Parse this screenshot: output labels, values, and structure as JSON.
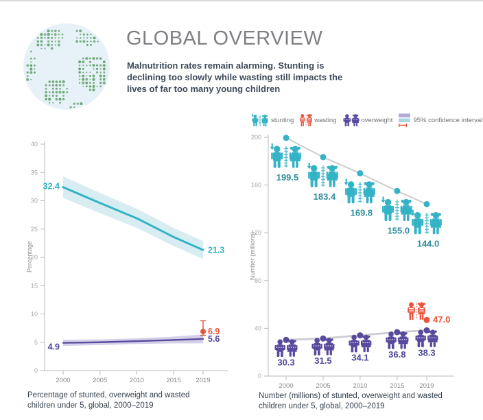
{
  "header": {
    "title": "GLOBAL OVERVIEW",
    "subtitle": "Malnutrition rates remain alarming. Stunting is\ndeclining too slowly while wasting still impacts the\nlives of far too many young children"
  },
  "legend": {
    "items": [
      {
        "label": "stunting",
        "color": "#35b3c6"
      },
      {
        "label": "wasting",
        "color": "#e8543d"
      },
      {
        "label": "overweight",
        "color": "#5a4a9e"
      },
      {
        "label": "95% confidence interval",
        "colors": [
          "#b3a8d6",
          "#a8d8e4",
          "#e8543d"
        ]
      }
    ]
  },
  "colors": {
    "teal": "#35b3c6",
    "teal_dark": "#2f8d9e",
    "red": "#e8543d",
    "purple": "#5a4a9e",
    "purple_dark": "#4d4699",
    "band_teal": "#d8edf2",
    "band_purple": "#d5d0ea",
    "trend": "#cbccce",
    "axis": "#b7b9bb",
    "globe_green": "#67a571",
    "globe_blue": "#e7f2f8"
  },
  "chart_data": [
    {
      "type": "line",
      "caption": "Percentage of stunted, overweight and wasted\nchildren under 5, global, 2000–2019",
      "ylabel": "Percentage",
      "xlabel": "",
      "ylim": [
        0,
        40
      ],
      "ytick_step": 5,
      "x": [
        2000,
        2005,
        2010,
        2015,
        2019
      ],
      "series": [
        {
          "name": "stunting",
          "color": "#35b3c6",
          "label_color": "#2eb2c5",
          "band_color": "#d8edf2",
          "values": [
            32.4,
            29.6,
            26.9,
            23.6,
            21.3
          ],
          "ci_half_width": [
            1.9,
            1.8,
            1.7,
            1.6,
            1.6
          ],
          "first_label": "32.4",
          "last_label": "21.3"
        },
        {
          "name": "overweight",
          "color": "#5a4a9e",
          "label_color": "#4d4699",
          "band_color": "#d5d0ea",
          "values": [
            4.9,
            5.0,
            5.2,
            5.4,
            5.6
          ],
          "ci_half_width": [
            0.55,
            0.5,
            0.5,
            0.6,
            0.8
          ],
          "first_label": "4.9",
          "last_label": "5.6"
        }
      ],
      "points": [
        {
          "name": "wasting",
          "color": "#e8543d",
          "x": 2019,
          "value": 6.9,
          "ci": [
            6.2,
            8.8
          ],
          "label": "6.9"
        }
      ],
      "legend_note": "95% confidence interval"
    },
    {
      "type": "pictogram-line",
      "caption": "Number (millions) of stunted, overweight and wasted\nchildren under 5, global, 2000–2019",
      "ylabel": "Number (millions)",
      "xlabel": "",
      "ylim": [
        0,
        200
      ],
      "ytick_step": 40,
      "x": [
        2000,
        2005,
        2010,
        2015,
        2019
      ],
      "series": [
        {
          "name": "stunting",
          "color": "#35b3c6",
          "label_color": "#2f8d9e",
          "values": [
            199.5,
            183.4,
            169.8,
            155.0,
            144.0
          ],
          "value_labels": [
            "199.5",
            "183.4",
            "169.8",
            "155.0",
            "144.0"
          ]
        },
        {
          "name": "overweight",
          "color": "#5a4a9e",
          "label_color": "#4d4699",
          "values": [
            30.3,
            31.5,
            34.1,
            36.8,
            38.3
          ],
          "value_labels": [
            "30.3",
            "31.5",
            "34.1",
            "36.8",
            "38.3"
          ]
        }
      ],
      "points": [
        {
          "name": "wasting",
          "color": "#e8543d",
          "x": 2019,
          "value": 47.0,
          "label": "47.0"
        }
      ]
    }
  ]
}
